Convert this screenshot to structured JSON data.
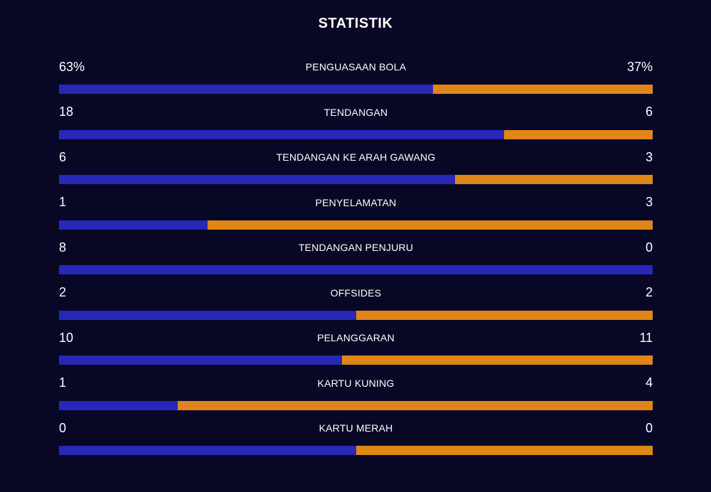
{
  "title": "STATISTIK",
  "colors": {
    "background": "#080826",
    "home_bar": "#2727b8",
    "away_bar": "#e08618",
    "text": "#ffffff"
  },
  "stats": [
    {
      "name": "PENGUASAAN BOLA",
      "home": "63%",
      "away": "37%",
      "home_share": 0.63
    },
    {
      "name": "TENDANGAN",
      "home": "18",
      "away": "6",
      "home_share": 0.75
    },
    {
      "name": "TENDANGAN KE ARAH GAWANG",
      "home": "6",
      "away": "3",
      "home_share": 0.6667
    },
    {
      "name": "PENYELAMATAN",
      "home": "1",
      "away": "3",
      "home_share": 0.25
    },
    {
      "name": "TENDANGAN PENJURU",
      "home": "8",
      "away": "0",
      "home_share": 1.0
    },
    {
      "name": "OFFSIDES",
      "home": "2",
      "away": "2",
      "home_share": 0.5
    },
    {
      "name": "PELANGGARAN",
      "home": "10",
      "away": "11",
      "home_share": 0.4762
    },
    {
      "name": "KARTU KUNING",
      "home": "1",
      "away": "4",
      "home_share": 0.2
    },
    {
      "name": "KARTU MERAH",
      "home": "0",
      "away": "0",
      "home_share": 0.5
    }
  ]
}
